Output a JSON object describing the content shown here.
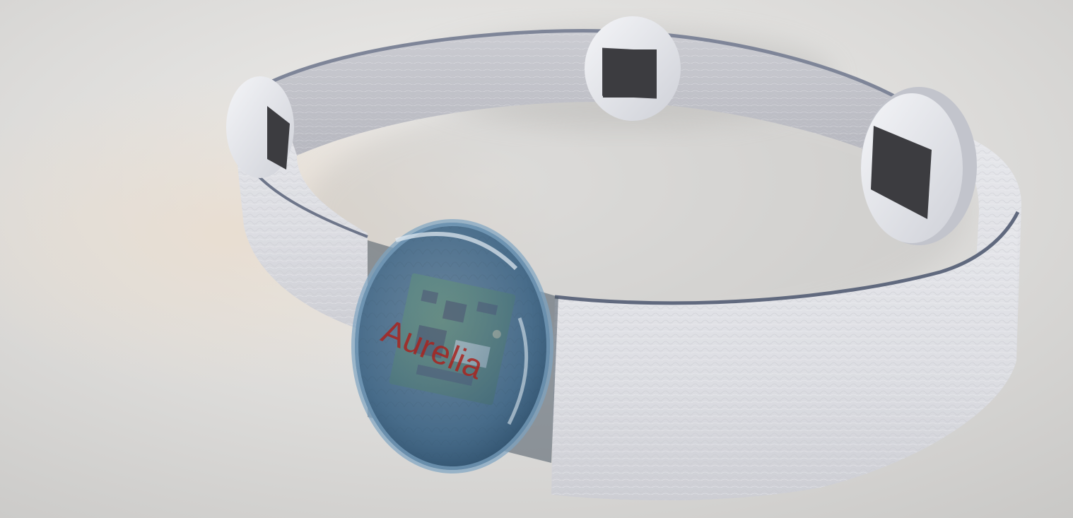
{
  "render": {
    "brand_text": "Aurelia",
    "colors": {
      "background": "#d9d8d6",
      "band": "#dfe0e4",
      "band_shadow": "#a9aab3",
      "pod": "#e9eaee",
      "sensor": "#3c3c40",
      "lens_glass": "#5d84a6",
      "pcb": "#2f5b2c",
      "brand": "#a8231f"
    },
    "icons": [
      "sensor-pad-icon",
      "circuit-board-icon",
      "glass-lens-icon"
    ]
  }
}
